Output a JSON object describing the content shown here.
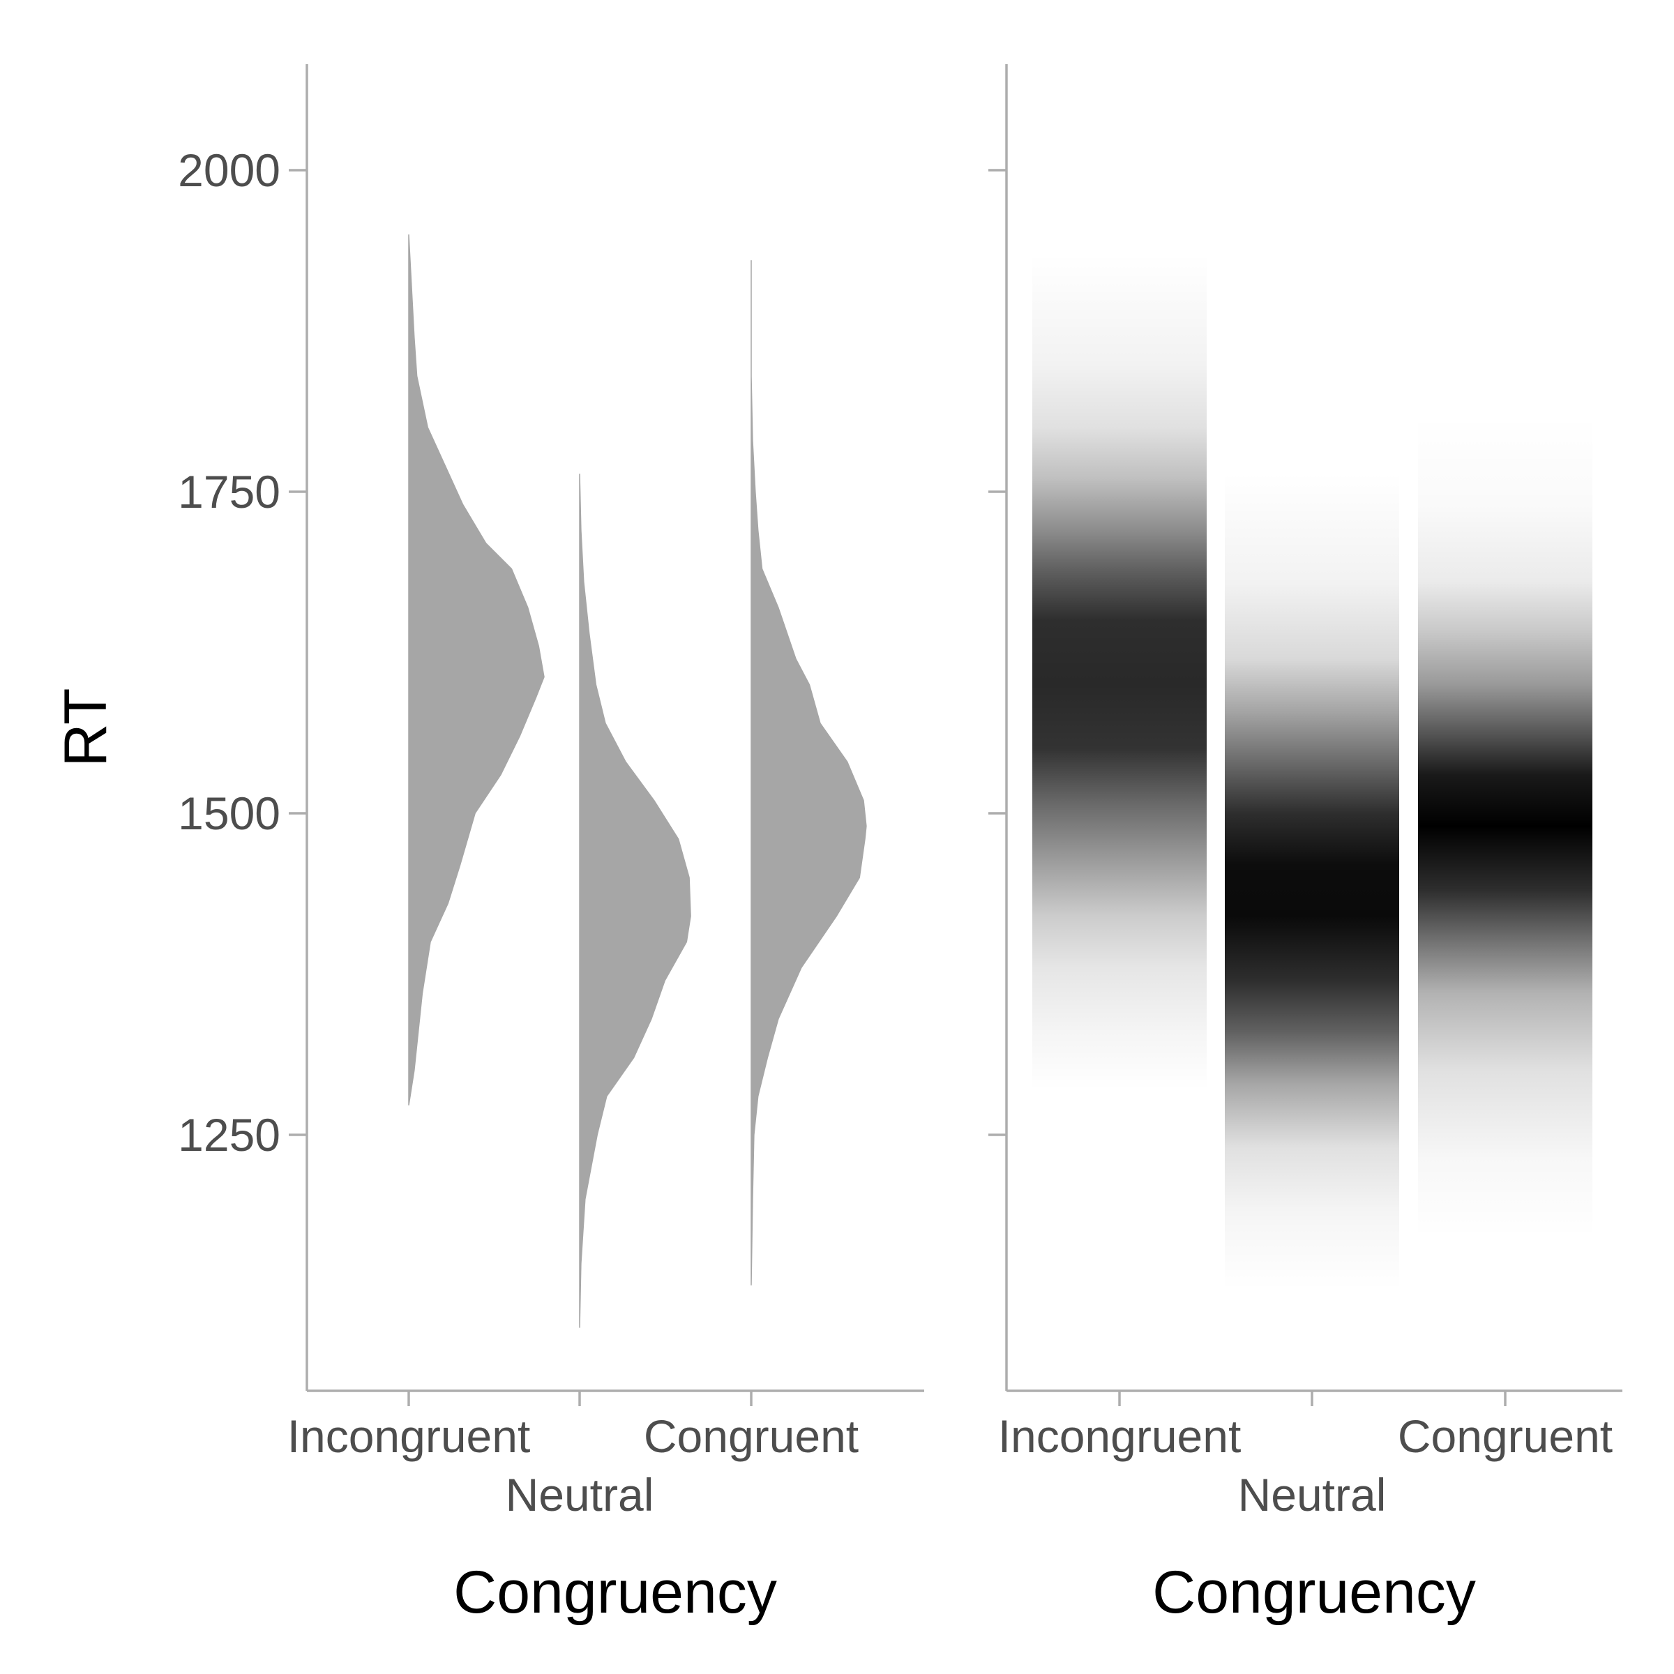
{
  "chart_data": [
    {
      "type": "half-violin",
      "panel": "left",
      "xlabel": "Congruency",
      "ylabel": "RT",
      "ylim": [
        1060,
        2080
      ],
      "yticks": [
        1250,
        1500,
        1750,
        2000
      ],
      "categories": [
        "Incongruent",
        "Neutral",
        "Congruent"
      ],
      "fill": "#a6a6a6",
      "grid": false,
      "series": [
        {
          "category": "Incongruent",
          "min": 1273,
          "max": 1950,
          "peak": 1606,
          "profile": [
            [
              1273,
              0.0
            ],
            [
              1300,
              0.04
            ],
            [
              1330,
              0.07
            ],
            [
              1360,
              0.1
            ],
            [
              1400,
              0.16
            ],
            [
              1430,
              0.29
            ],
            [
              1460,
              0.38
            ],
            [
              1500,
              0.49
            ],
            [
              1530,
              0.68
            ],
            [
              1560,
              0.82
            ],
            [
              1590,
              0.94
            ],
            [
              1606,
              1.0
            ],
            [
              1630,
              0.96
            ],
            [
              1660,
              0.88
            ],
            [
              1690,
              0.76
            ],
            [
              1710,
              0.57
            ],
            [
              1740,
              0.4
            ],
            [
              1770,
              0.27
            ],
            [
              1800,
              0.14
            ],
            [
              1840,
              0.06
            ],
            [
              1870,
              0.04
            ],
            [
              1910,
              0.02
            ],
            [
              1950,
              0.0
            ]
          ]
        },
        {
          "category": "Neutral",
          "min": 1100,
          "max": 1764,
          "peak": 1420,
          "profile": [
            [
              1100,
              0.0
            ],
            [
              1150,
              0.01
            ],
            [
              1200,
              0.04
            ],
            [
              1250,
              0.13
            ],
            [
              1280,
              0.2
            ],
            [
              1310,
              0.4
            ],
            [
              1340,
              0.53
            ],
            [
              1370,
              0.63
            ],
            [
              1400,
              0.79
            ],
            [
              1420,
              0.82
            ],
            [
              1450,
              0.81
            ],
            [
              1480,
              0.73
            ],
            [
              1510,
              0.55
            ],
            [
              1540,
              0.34
            ],
            [
              1570,
              0.19
            ],
            [
              1600,
              0.12
            ],
            [
              1640,
              0.07
            ],
            [
              1680,
              0.03
            ],
            [
              1720,
              0.01
            ],
            [
              1764,
              0.0
            ]
          ]
        },
        {
          "category": "Congruent",
          "min": 1133,
          "max": 1930,
          "peak": 1490,
          "profile": [
            [
              1133,
              0.0
            ],
            [
              1200,
              0.01
            ],
            [
              1250,
              0.02
            ],
            [
              1280,
              0.05
            ],
            [
              1310,
              0.12
            ],
            [
              1340,
              0.2
            ],
            [
              1380,
              0.37
            ],
            [
              1420,
              0.63
            ],
            [
              1450,
              0.8
            ],
            [
              1480,
              0.84
            ],
            [
              1490,
              0.85
            ],
            [
              1510,
              0.83
            ],
            [
              1540,
              0.71
            ],
            [
              1570,
              0.51
            ],
            [
              1600,
              0.43
            ],
            [
              1620,
              0.33
            ],
            [
              1660,
              0.2
            ],
            [
              1690,
              0.08
            ],
            [
              1720,
              0.05
            ],
            [
              1750,
              0.03
            ],
            [
              1790,
              0.01
            ],
            [
              1840,
              0.0
            ],
            [
              1900,
              0.0
            ],
            [
              1930,
              0.0
            ]
          ]
        }
      ]
    },
    {
      "type": "density-gradient",
      "panel": "right",
      "xlabel": "Congruency",
      "ylim": [
        1060,
        2080
      ],
      "yticks": [
        1250,
        1500,
        1750,
        2000
      ],
      "categories": [
        "Incongruent",
        "Neutral",
        "Congruent"
      ],
      "grid": false,
      "series": [
        {
          "category": "Incongruent",
          "min": 1285,
          "max": 1935,
          "stops": [
            [
              1285,
              0.0
            ],
            [
              1330,
              0.04
            ],
            [
              1380,
              0.1
            ],
            [
              1420,
              0.2
            ],
            [
              1470,
              0.42
            ],
            [
              1510,
              0.6
            ],
            [
              1550,
              0.8
            ],
            [
              1600,
              0.84
            ],
            [
              1650,
              0.82
            ],
            [
              1690,
              0.62
            ],
            [
              1720,
              0.45
            ],
            [
              1760,
              0.25
            ],
            [
              1800,
              0.12
            ],
            [
              1850,
              0.05
            ],
            [
              1935,
              0.0
            ]
          ]
        },
        {
          "category": "Neutral",
          "min": 1130,
          "max": 1765,
          "stops": [
            [
              1130,
              0.0
            ],
            [
              1190,
              0.04
            ],
            [
              1240,
              0.12
            ],
            [
              1290,
              0.35
            ],
            [
              1330,
              0.62
            ],
            [
              1370,
              0.82
            ],
            [
              1420,
              0.96
            ],
            [
              1460,
              0.95
            ],
            [
              1500,
              0.82
            ],
            [
              1540,
              0.58
            ],
            [
              1580,
              0.35
            ],
            [
              1620,
              0.15
            ],
            [
              1680,
              0.05
            ],
            [
              1765,
              0.0
            ]
          ]
        },
        {
          "category": "Congruent",
          "min": 1170,
          "max": 1810,
          "stops": [
            [
              1170,
              0.0
            ],
            [
              1230,
              0.03
            ],
            [
              1300,
              0.12
            ],
            [
              1360,
              0.3
            ],
            [
              1400,
              0.55
            ],
            [
              1440,
              0.82
            ],
            [
              1490,
              1.0
            ],
            [
              1530,
              0.9
            ],
            [
              1560,
              0.68
            ],
            [
              1600,
              0.4
            ],
            [
              1640,
              0.22
            ],
            [
              1680,
              0.08
            ],
            [
              1740,
              0.02
            ],
            [
              1810,
              0.0
            ]
          ]
        }
      ]
    }
  ]
}
